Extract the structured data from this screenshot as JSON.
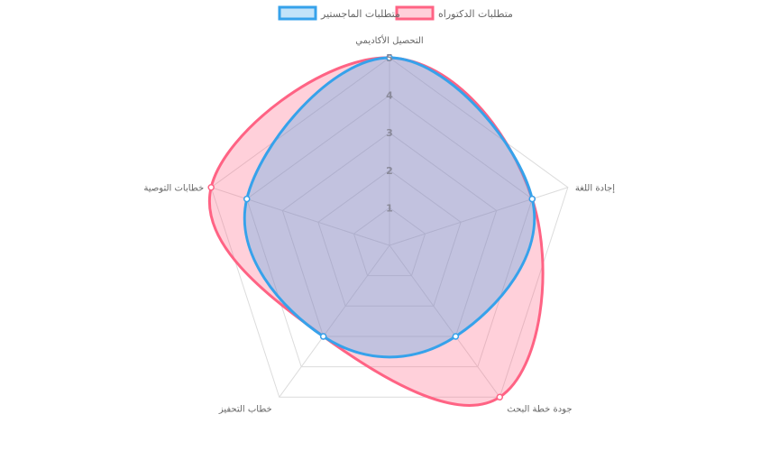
{
  "chart_data": {
    "type": "radar",
    "labels": [
      "التحصيل الأكاديمي",
      "إجادة اللغة",
      "جودة خطة البحث",
      "خطاب التحفيز",
      "خطابات التوصية"
    ],
    "series": [
      {
        "name": "متطلبات الدكتوراه",
        "values": [
          5,
          4,
          5,
          3,
          5
        ],
        "color": "#ff6384",
        "fill": "rgba(255, 99, 132, 0.3)"
      },
      {
        "name": "متطلبات الماجستير",
        "values": [
          5,
          4,
          3,
          3,
          4
        ],
        "color": "#36a2eb",
        "fill": "rgba(54, 162, 235, 0.3)"
      }
    ],
    "r_range": [
      0,
      5
    ],
    "ticks": [
      "1",
      "2",
      "3",
      "4",
      "5"
    ],
    "grid": true,
    "legend_position": "top"
  }
}
